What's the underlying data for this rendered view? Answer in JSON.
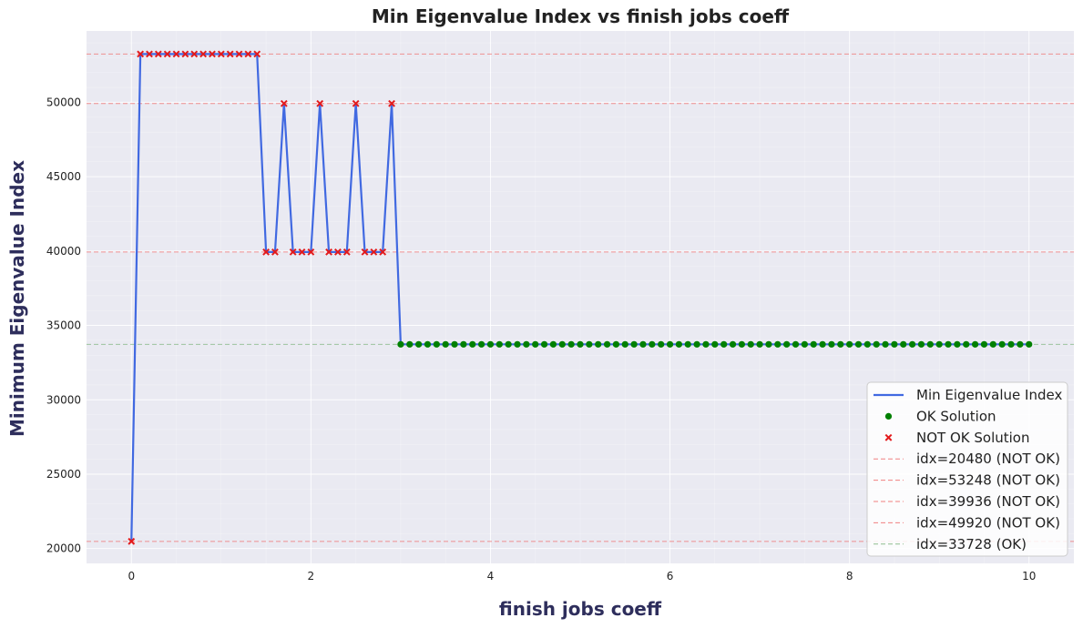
{
  "chart_data": {
    "type": "line",
    "title": "Min Eigenvalue Index vs finish jobs coeff",
    "xlabel": "finish jobs coeff",
    "ylabel": "Minimum Eigenvalue Index",
    "xlim": [
      -0.5,
      10.5
    ],
    "ylim": [
      19000,
      54800
    ],
    "x_ticks": [
      0,
      2,
      4,
      6,
      8,
      10
    ],
    "y_ticks": [
      20000,
      25000,
      30000,
      35000,
      40000,
      45000,
      50000
    ],
    "grid": true,
    "legend_position": "lower-right",
    "colors": {
      "background": "#eaeaf2",
      "grid": "#ffffff",
      "line": "#4169e1",
      "ok_marker": "#008000",
      "not_ok_marker": "#e31a1c",
      "not_ok_ref": "#f08080",
      "ok_ref": "#8fbc8f"
    },
    "series": [
      {
        "name": "Min Eigenvalue Index",
        "x": [
          0,
          0.1,
          0.2,
          0.3,
          0.4,
          0.5,
          0.6,
          0.7,
          0.8,
          0.9,
          1.0,
          1.1,
          1.2,
          1.3,
          1.4,
          1.5,
          1.6,
          1.7,
          1.8,
          1.9,
          2.0,
          2.1,
          2.2,
          2.3,
          2.4,
          2.5,
          2.6,
          2.7,
          2.8,
          2.9,
          3.0,
          3.1,
          3.2,
          3.3,
          3.4,
          3.5,
          3.6,
          3.7,
          3.8,
          3.9,
          4.0,
          4.1,
          4.2,
          4.3,
          4.4,
          4.5,
          4.6,
          4.7,
          4.8,
          4.9,
          5.0,
          5.1,
          5.2,
          5.3,
          5.4,
          5.5,
          5.6,
          5.7,
          5.8,
          5.9,
          6.0,
          6.1,
          6.2,
          6.3,
          6.4,
          6.5,
          6.6,
          6.7,
          6.8,
          6.9,
          7.0,
          7.1,
          7.2,
          7.3,
          7.4,
          7.5,
          7.6,
          7.7,
          7.8,
          7.9,
          8.0,
          8.1,
          8.2,
          8.3,
          8.4,
          8.5,
          8.6,
          8.7,
          8.8,
          8.9,
          9.0,
          9.1,
          9.2,
          9.3,
          9.4,
          9.5,
          9.6,
          9.7,
          9.8,
          9.9,
          10.0
        ],
        "y": [
          20480,
          53248,
          53248,
          53248,
          53248,
          53248,
          53248,
          53248,
          53248,
          53248,
          53248,
          53248,
          53248,
          53248,
          53248,
          39936,
          39936,
          49920,
          39936,
          39936,
          39936,
          49920,
          39936,
          39936,
          39936,
          49920,
          39936,
          39936,
          39936,
          49920,
          33728,
          33728,
          33728,
          33728,
          33728,
          33728,
          33728,
          33728,
          33728,
          33728,
          33728,
          33728,
          33728,
          33728,
          33728,
          33728,
          33728,
          33728,
          33728,
          33728,
          33728,
          33728,
          33728,
          33728,
          33728,
          33728,
          33728,
          33728,
          33728,
          33728,
          33728,
          33728,
          33728,
          33728,
          33728,
          33728,
          33728,
          33728,
          33728,
          33728,
          33728,
          33728,
          33728,
          33728,
          33728,
          33728,
          33728,
          33728,
          33728,
          33728,
          33728,
          33728,
          33728,
          33728,
          33728,
          33728,
          33728,
          33728,
          33728,
          33728,
          33728,
          33728,
          33728,
          33728,
          33728,
          33728,
          33728,
          33728,
          33728,
          33728,
          33728
        ],
        "ok_status_threshold": 33728
      }
    ],
    "reference_lines": [
      {
        "y": 20480,
        "label": "idx=20480 (NOT OK)",
        "status": "not_ok"
      },
      {
        "y": 53248,
        "label": "idx=53248 (NOT OK)",
        "status": "not_ok"
      },
      {
        "y": 39936,
        "label": "idx=39936 (NOT OK)",
        "status": "not_ok"
      },
      {
        "y": 49920,
        "label": "idx=49920 (NOT OK)",
        "status": "not_ok"
      },
      {
        "y": 33728,
        "label": "idx=33728 (OK)",
        "status": "ok"
      }
    ],
    "legend": {
      "line_label": "Min Eigenvalue Index",
      "ok_label": "OK Solution",
      "not_ok_label": "NOT OK Solution"
    }
  }
}
